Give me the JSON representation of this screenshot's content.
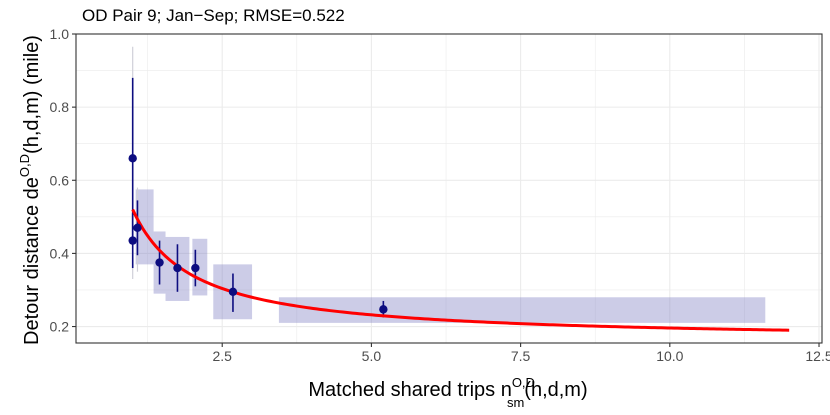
{
  "chart_data": {
    "type": "scatter",
    "title": "OD Pair 9; Jan−Sep; RMSE=0.522",
    "xlabel": {
      "prefix": "Matched shared trips n",
      "sup": "O,D",
      "sub": "sm",
      "suffix": "(h,d,m)"
    },
    "ylabel": {
      "prefix": "Detour distance de",
      "sup": "O,D",
      "suffix": "(h,d,m) (mile)"
    },
    "xlim": [
      0.05,
      12.55
    ],
    "ylim": [
      0.155,
      1.0
    ],
    "x_ticks": [
      2.5,
      5.0,
      7.5,
      10.0,
      12.5
    ],
    "x_tick_labels": [
      "2.5",
      "5.0",
      "7.5",
      "10.0",
      "12.5"
    ],
    "y_ticks": [
      0.2,
      0.4,
      0.6,
      0.8,
      1.0
    ],
    "y_tick_labels": [
      "0.2",
      "0.4",
      "0.6",
      "0.8",
      "1.0"
    ],
    "grid": true,
    "colors": {
      "points": "#0d0d80",
      "fit": "#ff0000",
      "rect": "#7f7fc2",
      "panel_border": "#333333",
      "grid": "#ebebeb"
    },
    "points": [
      {
        "x": 1.0,
        "y": 0.66,
        "ymin": 0.44,
        "ymax": 0.88
      },
      {
        "x": 1.0,
        "y": 0.435,
        "ymin": 0.36,
        "ymax": 0.51
      },
      {
        "x": 1.08,
        "y": 0.47,
        "ymin": 0.395,
        "ymax": 0.545
      },
      {
        "x": 1.45,
        "y": 0.375,
        "ymin": 0.315,
        "ymax": 0.435
      },
      {
        "x": 1.75,
        "y": 0.36,
        "ymin": 0.295,
        "ymax": 0.425
      },
      {
        "x": 2.05,
        "y": 0.36,
        "ymin": 0.31,
        "ymax": 0.41
      },
      {
        "x": 2.68,
        "y": 0.295,
        "ymin": 0.24,
        "ymax": 0.345
      },
      {
        "x": 5.2,
        "y": 0.247,
        "ymin": 0.225,
        "ymax": 0.27
      }
    ],
    "whiskers": [
      {
        "x": 1.0,
        "ymin": 0.33,
        "ymax": 0.965
      },
      {
        "x": 1.08,
        "ymin": 0.35,
        "ymax": 0.58
      }
    ],
    "ranges": [
      {
        "xmin": 1.05,
        "xmax": 1.35,
        "ymin": 0.37,
        "ymax": 0.575
      },
      {
        "xmin": 1.35,
        "xmax": 1.55,
        "ymin": 0.29,
        "ymax": 0.46
      },
      {
        "xmin": 1.55,
        "xmax": 1.95,
        "ymin": 0.27,
        "ymax": 0.445
      },
      {
        "xmin": 2.0,
        "xmax": 2.25,
        "ymin": 0.285,
        "ymax": 0.44
      },
      {
        "xmin": 2.35,
        "xmax": 3.0,
        "ymin": 0.22,
        "ymax": 0.37
      },
      {
        "xmin": 3.45,
        "xmax": 11.6,
        "ymin": 0.21,
        "ymax": 0.28
      }
    ],
    "fit_curve": {
      "model": "y = a + b / x",
      "a": 0.16,
      "b": 0.36,
      "x_start": 1.0,
      "x_end": 12.0
    }
  }
}
